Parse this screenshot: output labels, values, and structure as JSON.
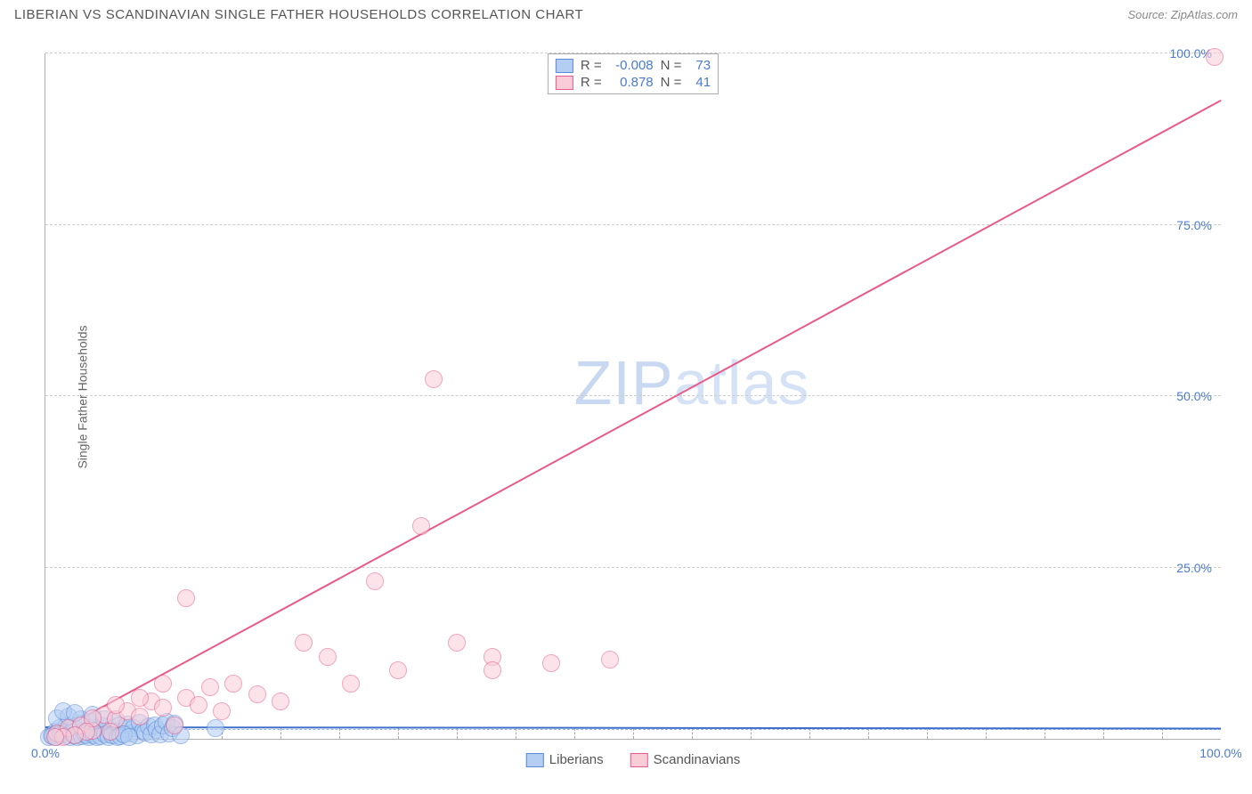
{
  "header": {
    "title": "LIBERIAN VS SCANDINAVIAN SINGLE FATHER HOUSEHOLDS CORRELATION CHART",
    "source": "Source: ZipAtlas.com"
  },
  "chart": {
    "type": "scatter",
    "ylabel": "Single Father Households",
    "xlim": [
      0,
      100
    ],
    "ylim": [
      0,
      100
    ],
    "xtick_labels": [
      "0.0%",
      "100.0%"
    ],
    "xtick_positions": [
      0,
      100
    ],
    "ytick_labels": [
      "25.0%",
      "50.0%",
      "75.0%",
      "100.0%"
    ],
    "ytick_positions": [
      25,
      50,
      75,
      100
    ],
    "minor_xticks": [
      5,
      10,
      15,
      20,
      25,
      30,
      35,
      40,
      45,
      50,
      55,
      60,
      65,
      70,
      75,
      80,
      85,
      90,
      95
    ],
    "grid_color": "#cccccc",
    "background_color": "#ffffff",
    "axis_color": "#b0b0b0",
    "marker_radius": 9,
    "marker_stroke_width": 1,
    "watermark_text_1": "ZIP",
    "watermark_text_2": "atlas",
    "legend": {
      "series1_label": "Liberians",
      "series2_label": "Scandinavians"
    },
    "stats": {
      "r_label": "R =",
      "n_label": "N =",
      "series1": {
        "r": "-0.008",
        "n": "73"
      },
      "series2": {
        "r": "0.878",
        "n": "41"
      }
    },
    "series": [
      {
        "name": "Liberians",
        "fill": "#b3cdf3",
        "stroke": "#5a8ad4",
        "trend": {
          "x1": 0,
          "y1": 1.5,
          "x2": 100,
          "y2": 1.3,
          "color": "#3d6fc9"
        },
        "points": [
          [
            0.5,
            0.5
          ],
          [
            0.8,
            1.0
          ],
          [
            1.0,
            0.8
          ],
          [
            1.2,
            1.5
          ],
          [
            1.5,
            0.6
          ],
          [
            1.8,
            2.0
          ],
          [
            2.0,
            1.2
          ],
          [
            2.2,
            0.9
          ],
          [
            2.5,
            1.8
          ],
          [
            2.8,
            0.7
          ],
          [
            3.0,
            2.2
          ],
          [
            3.2,
            1.1
          ],
          [
            3.5,
            0.5
          ],
          [
            3.8,
            1.6
          ],
          [
            4.0,
            2.5
          ],
          [
            4.2,
            0.8
          ],
          [
            4.5,
            1.3
          ],
          [
            4.8,
            2.0
          ],
          [
            5.0,
            0.9
          ],
          [
            5.2,
            1.7
          ],
          [
            5.5,
            0.6
          ],
          [
            5.8,
            2.3
          ],
          [
            6.0,
            1.0
          ],
          [
            6.3,
            1.9
          ],
          [
            6.5,
            0.7
          ],
          [
            6.8,
            1.4
          ],
          [
            7.0,
            2.1
          ],
          [
            7.3,
            0.8
          ],
          [
            7.5,
            1.6
          ],
          [
            7.8,
            0.5
          ],
          [
            8.0,
            2.4
          ],
          [
            8.3,
            1.2
          ],
          [
            8.5,
            0.9
          ],
          [
            8.8,
            1.8
          ],
          [
            9.0,
            0.6
          ],
          [
            9.3,
            2.0
          ],
          [
            9.5,
            1.3
          ],
          [
            9.8,
            0.7
          ],
          [
            10.0,
            1.9
          ],
          [
            10.3,
            2.5
          ],
          [
            10.5,
            0.8
          ],
          [
            10.8,
            1.5
          ],
          [
            11.0,
            2.2
          ],
          [
            1.0,
            3.0
          ],
          [
            2.0,
            3.2
          ],
          [
            3.0,
            2.8
          ],
          [
            4.0,
            3.5
          ],
          [
            5.0,
            2.9
          ],
          [
            1.5,
            4.0
          ],
          [
            2.5,
            3.8
          ],
          [
            0.3,
            0.3
          ],
          [
            0.6,
            0.4
          ],
          [
            0.9,
            0.2
          ],
          [
            1.3,
            0.6
          ],
          [
            1.7,
            0.4
          ],
          [
            2.1,
            0.3
          ],
          [
            2.4,
            0.5
          ],
          [
            2.7,
            0.2
          ],
          [
            3.1,
            0.4
          ],
          [
            3.4,
            0.6
          ],
          [
            3.7,
            0.3
          ],
          [
            4.1,
            0.5
          ],
          [
            4.4,
            0.2
          ],
          [
            4.7,
            0.4
          ],
          [
            5.1,
            0.6
          ],
          [
            5.4,
            0.3
          ],
          [
            5.7,
            0.5
          ],
          [
            6.1,
            0.2
          ],
          [
            6.4,
            0.4
          ],
          [
            6.7,
            0.6
          ],
          [
            7.1,
            0.3
          ],
          [
            14.5,
            1.5
          ],
          [
            11.5,
            0.5
          ]
        ]
      },
      {
        "name": "Scandinavians",
        "fill": "#f8cdd8",
        "stroke": "#e85a8a",
        "trend": {
          "x1": 0,
          "y1": 0,
          "x2": 100,
          "y2": 93,
          "color": "#e85a8a"
        },
        "points": [
          [
            1.0,
            0.8
          ],
          [
            2.0,
            1.5
          ],
          [
            3.0,
            2.0
          ],
          [
            4.0,
            1.2
          ],
          [
            5.0,
            3.5
          ],
          [
            6.0,
            2.8
          ],
          [
            7.0,
            4.0
          ],
          [
            8.0,
            3.2
          ],
          [
            9.0,
            5.5
          ],
          [
            10.0,
            4.5
          ],
          [
            11.0,
            2.0
          ],
          [
            12.0,
            6.0
          ],
          [
            13.0,
            5.0
          ],
          [
            14.0,
            7.5
          ],
          [
            15.0,
            4.0
          ],
          [
            16.0,
            8.0
          ],
          [
            18.0,
            6.5
          ],
          [
            20.0,
            5.5
          ],
          [
            22.0,
            14.0
          ],
          [
            24.0,
            12.0
          ],
          [
            26.0,
            8.0
          ],
          [
            28.0,
            23.0
          ],
          [
            30.0,
            10.0
          ],
          [
            32.0,
            31.0
          ],
          [
            35.0,
            14.0
          ],
          [
            38.0,
            12.0
          ],
          [
            33.0,
            52.5
          ],
          [
            38.0,
            10.0
          ],
          [
            43.0,
            11.0
          ],
          [
            48.0,
            11.5
          ],
          [
            12.0,
            20.5
          ],
          [
            10.0,
            8.0
          ],
          [
            8.0,
            6.0
          ],
          [
            6.0,
            5.0
          ],
          [
            4.0,
            3.0
          ],
          [
            3.5,
            1.0
          ],
          [
            2.5,
            0.5
          ],
          [
            1.5,
            0.3
          ],
          [
            0.8,
            0.2
          ],
          [
            99.5,
            99.5
          ],
          [
            5.5,
            1.0
          ]
        ]
      }
    ]
  }
}
